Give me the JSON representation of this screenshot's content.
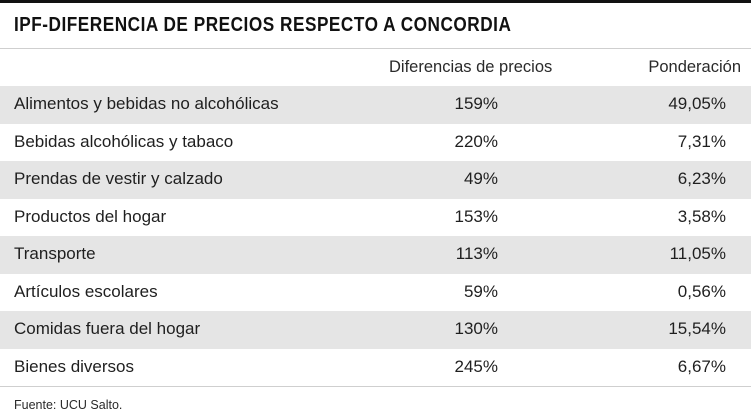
{
  "title": "IPF-DIFERENCIA DE PRECIOS RESPECTO A CONCORDIA",
  "columns": {
    "category": "",
    "difference": "Diferencias de precios",
    "weighting": "Ponderación"
  },
  "rows": [
    {
      "category": "Alimentos y bebidas no alcohólicas",
      "difference": "159%",
      "weighting": "49,05%"
    },
    {
      "category": "Bebidas alcohólicas y tabaco",
      "difference": "220%",
      "weighting": "7,31%"
    },
    {
      "category": "Prendas de vestir y calzado",
      "difference": "49%",
      "weighting": "6,23%"
    },
    {
      "category": "Productos del hogar",
      "difference": "153%",
      "weighting": "3,58%"
    },
    {
      "category": "Transporte",
      "difference": "113%",
      "weighting": "11,05%"
    },
    {
      "category": "Artículos escolares",
      "difference": "59%",
      "weighting": "0,56%"
    },
    {
      "category": "Comidas fuera del hogar",
      "difference": "130%",
      "weighting": "15,54%"
    },
    {
      "category": "Bienes diversos",
      "difference": "245%",
      "weighting": "6,67%"
    }
  ],
  "source": "Fuente: UCU Salto.",
  "colors": {
    "shaded_row": "#e5e5e5",
    "text": "#1f1f1f",
    "rule": "#111111"
  }
}
